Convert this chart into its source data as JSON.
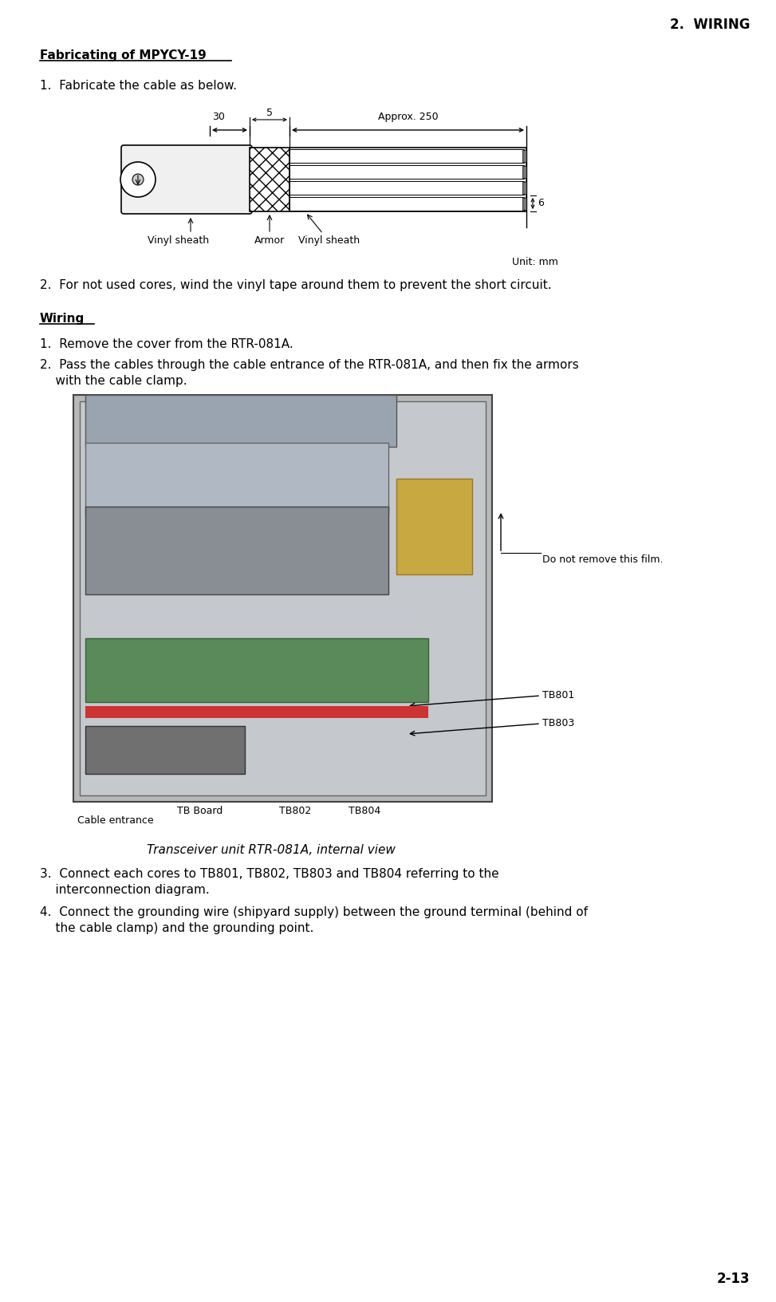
{
  "page_header": "2.  WIRING",
  "page_number": "2-13",
  "section_title": "Fabricating of MPYCY-19",
  "item1_text": "1.  Fabricate the cable as below.",
  "item2_text": "2.  For not used cores, wind the vinyl tape around them to prevent the short circuit.",
  "unit_text": "Unit: mm",
  "wiring_title": "Wiring",
  "wiring_item1": "1.  Remove the cover from the RTR-081A.",
  "wiring_item2a": "2.  Pass the cables through the cable entrance of the RTR-081A, and then fix the armors",
  "wiring_item2b": "    with the cable clamp.",
  "caption": "Transceiver unit RTR-081A, internal view",
  "item3a": "3.  Connect each cores to TB801, TB802, TB803 and TB804 referring to the",
  "item3b": "    interconnection diagram.",
  "item4a": "4.  Connect the grounding wire (shipyard supply) between the ground terminal (behind of",
  "item4b": "    the cable clamp) and the grounding point.",
  "dim_30": "30",
  "dim_5": "5",
  "dim_approx250": "Approx. 250",
  "dim_6": "6",
  "label_vinyl_sheath_left": "Vinyl sheath",
  "label_armor": "Armor",
  "label_vinyl_sheath_right": "Vinyl sheath",
  "label_do_not_remove": "Do not remove this film.",
  "label_tb801": "TB801",
  "label_tb803": "TB803",
  "label_tb_board": "TB Board",
  "label_tb802": "TB802",
  "label_tb804": "TB804",
  "label_cable_entrance": "Cable entrance",
  "bg_color": "#ffffff",
  "text_color": "#000000",
  "font_size_body": 11,
  "font_size_header": 11,
  "font_size_title": 12
}
